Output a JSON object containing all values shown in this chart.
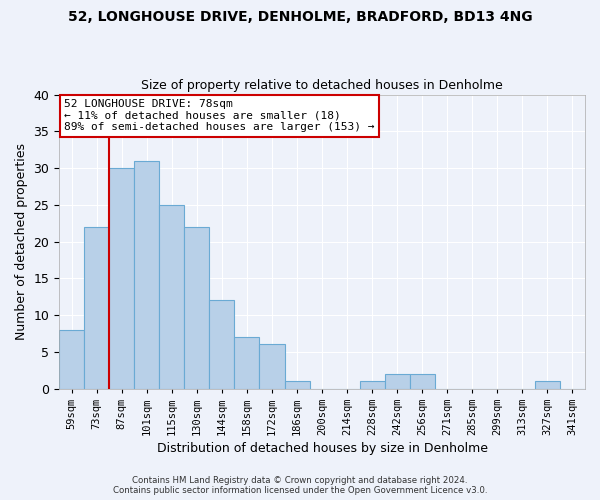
{
  "title": "52, LONGHOUSE DRIVE, DENHOLME, BRADFORD, BD13 4NG",
  "subtitle": "Size of property relative to detached houses in Denholme",
  "xlabel": "Distribution of detached houses by size in Denholme",
  "ylabel": "Number of detached properties",
  "categories": [
    "59sqm",
    "73sqm",
    "87sqm",
    "101sqm",
    "115sqm",
    "130sqm",
    "144sqm",
    "158sqm",
    "172sqm",
    "186sqm",
    "200sqm",
    "214sqm",
    "228sqm",
    "242sqm",
    "256sqm",
    "271sqm",
    "285sqm",
    "299sqm",
    "313sqm",
    "327sqm",
    "341sqm"
  ],
  "values": [
    8,
    22,
    30,
    31,
    25,
    22,
    12,
    7,
    6,
    1,
    0,
    0,
    1,
    2,
    2,
    0,
    0,
    0,
    0,
    1,
    0
  ],
  "bar_color": "#b8d0e8",
  "bar_edge_color": "#6aaad4",
  "red_line_color": "#cc0000",
  "background_color": "#eef2fa",
  "grid_color": "#ffffff",
  "annotation_line1": "52 LONGHOUSE DRIVE: 78sqm",
  "annotation_line2": "← 11% of detached houses are smaller (18)",
  "annotation_line3": "89% of semi-detached houses are larger (153) →",
  "annotation_box_color": "#ffffff",
  "annotation_border_color": "#cc0000",
  "ylim": [
    0,
    40
  ],
  "red_line_x": 1.5,
  "footer1": "Contains HM Land Registry data © Crown copyright and database right 2024.",
  "footer2": "Contains public sector information licensed under the Open Government Licence v3.0."
}
